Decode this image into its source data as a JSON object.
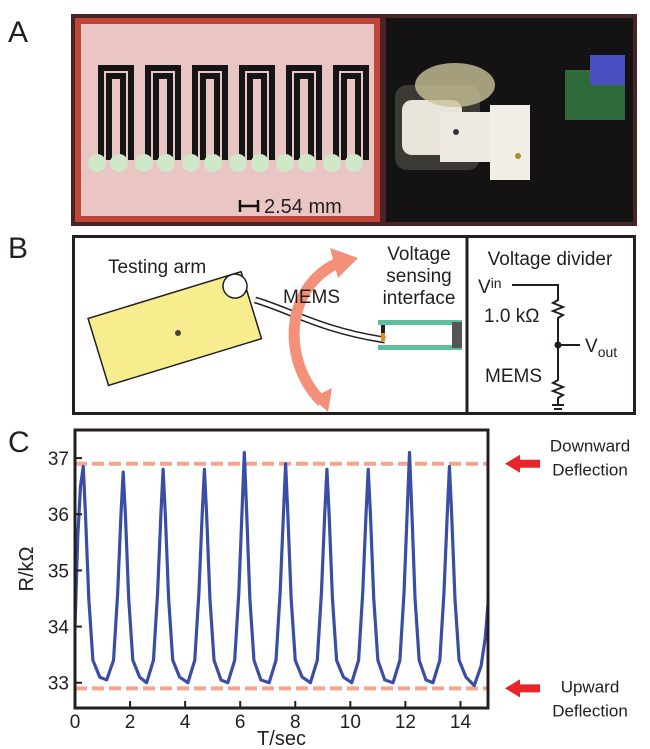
{
  "panel_labels": [
    "A",
    "B",
    "C"
  ],
  "photo": {
    "scale_label": "2.54 mm"
  },
  "diagram": {
    "testing_arm": "Testing arm",
    "mems": "MEMS",
    "interface": [
      "Voltage",
      "sensing",
      "interface"
    ],
    "divider_title": "Voltage divider",
    "vin": {
      "base": "V",
      "sub": "in"
    },
    "resistor": "1.0 kΩ",
    "vout": {
      "base": "V",
      "sub": "out"
    },
    "divider_mems": "MEMS"
  },
  "chart_data": {
    "type": "line",
    "xlabel": "T/sec",
    "ylabel": "R/kΩ",
    "color": "#3a4ea6",
    "xlim": [
      0,
      15
    ],
    "ylim": [
      32.55,
      37.5
    ],
    "xticks": [
      0,
      2,
      4,
      6,
      8,
      10,
      12,
      14
    ],
    "yticks": [
      33,
      34,
      35,
      36,
      37
    ],
    "reference_lines": [
      {
        "value": 36.9,
        "label": [
          "Downward",
          "Deflection"
        ]
      },
      {
        "value": 32.9,
        "label": [
          "Upward",
          "Deflection"
        ]
      }
    ],
    "x": [
      0,
      0.1,
      0.2,
      0.3,
      0.38,
      0.5,
      0.65,
      0.9,
      1.15,
      1.4,
      1.55,
      1.67,
      1.75,
      1.83,
      1.95,
      2.1,
      2.35,
      2.6,
      2.85,
      3.0,
      3.12,
      3.2,
      3.28,
      3.4,
      3.55,
      3.8,
      4.1,
      4.35,
      4.5,
      4.62,
      4.7,
      4.78,
      4.9,
      5.05,
      5.3,
      5.55,
      5.8,
      5.95,
      6.07,
      6.15,
      6.23,
      6.35,
      6.5,
      6.75,
      7.05,
      7.3,
      7.45,
      7.57,
      7.65,
      7.73,
      7.85,
      8.0,
      8.25,
      8.55,
      8.8,
      8.95,
      9.07,
      9.15,
      9.23,
      9.35,
      9.5,
      9.75,
      10.05,
      10.3,
      10.45,
      10.57,
      10.65,
      10.73,
      10.85,
      11.0,
      11.25,
      11.55,
      11.8,
      11.95,
      12.07,
      12.15,
      12.23,
      12.35,
      12.5,
      12.75,
      13.0,
      13.25,
      13.4,
      13.52,
      13.6,
      13.68,
      13.8,
      13.95,
      14.2,
      14.5,
      14.75,
      14.9,
      15.0
    ],
    "values": [
      34.0,
      35.6,
      36.5,
      36.85,
      36.0,
      34.5,
      33.4,
      33.1,
      33.05,
      33.4,
      34.6,
      36.0,
      36.75,
      36.0,
      34.5,
      33.4,
      33.1,
      33.0,
      33.4,
      34.6,
      36.0,
      36.8,
      36.0,
      34.5,
      33.4,
      33.1,
      33.0,
      33.4,
      34.6,
      36.0,
      36.8,
      36.0,
      34.5,
      33.4,
      33.05,
      33.0,
      33.4,
      34.6,
      36.1,
      37.1,
      36.1,
      34.5,
      33.4,
      33.05,
      33.0,
      33.4,
      34.6,
      36.0,
      36.9,
      36.0,
      34.5,
      33.4,
      33.1,
      33.0,
      33.4,
      34.6,
      36.0,
      36.8,
      36.0,
      34.5,
      33.4,
      33.1,
      33.0,
      33.4,
      34.6,
      36.0,
      36.8,
      36.0,
      34.5,
      33.4,
      33.05,
      33.0,
      33.4,
      34.6,
      36.1,
      37.1,
      36.1,
      34.5,
      33.4,
      33.05,
      33.0,
      33.4,
      34.6,
      36.0,
      36.85,
      36.0,
      34.5,
      33.4,
      33.1,
      32.95,
      33.3,
      33.8,
      34.4
    ]
  }
}
